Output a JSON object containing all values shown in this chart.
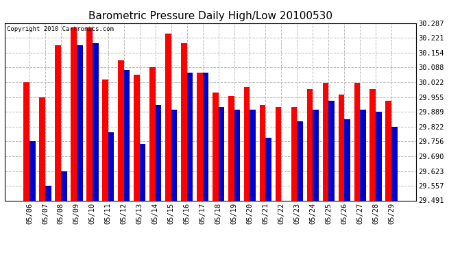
{
  "title": "Barometric Pressure Daily High/Low 20100530",
  "copyright": "Copyright 2010 Cartronics.com",
  "dates": [
    "05/06",
    "05/07",
    "05/08",
    "05/09",
    "05/10",
    "05/11",
    "05/12",
    "05/13",
    "05/14",
    "05/15",
    "05/16",
    "05/17",
    "05/18",
    "05/19",
    "05/20",
    "05/21",
    "05/22",
    "05/23",
    "05/24",
    "05/25",
    "05/26",
    "05/27",
    "05/28",
    "05/29"
  ],
  "highs": [
    30.022,
    29.955,
    30.187,
    30.267,
    30.267,
    30.034,
    30.121,
    30.055,
    30.088,
    30.241,
    30.198,
    30.066,
    29.977,
    29.96,
    30.0,
    29.92,
    29.91,
    29.91,
    29.99,
    30.02,
    29.965,
    30.02,
    29.99,
    29.94
  ],
  "lows": [
    29.756,
    29.557,
    29.623,
    30.187,
    30.198,
    29.798,
    30.077,
    29.745,
    29.92,
    29.9,
    30.066,
    30.066,
    29.91,
    29.9,
    29.9,
    29.773,
    29.491,
    29.845,
    29.9,
    29.94,
    29.856,
    29.9,
    29.89,
    29.822
  ],
  "high_color": "#ff0000",
  "low_color": "#0000cc",
  "background_color": "#ffffff",
  "grid_color": "#bbbbbb",
  "yticks": [
    29.491,
    29.557,
    29.623,
    29.69,
    29.756,
    29.822,
    29.889,
    29.955,
    30.022,
    30.088,
    30.154,
    30.221,
    30.287
  ],
  "ymin": 29.491,
  "ymax": 30.287,
  "title_fontsize": 11,
  "tick_fontsize": 7.5,
  "bar_width": 0.38
}
